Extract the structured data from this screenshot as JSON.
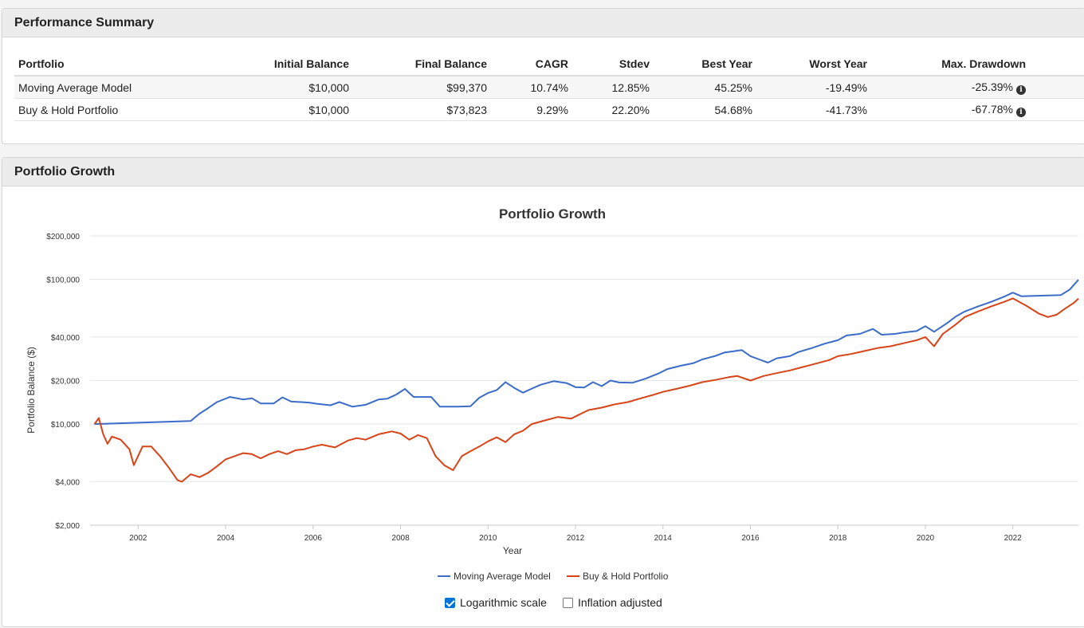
{
  "summary": {
    "title": "Performance Summary",
    "columns": [
      "Portfolio",
      "Initial Balance",
      "Final Balance",
      "CAGR",
      "Stdev",
      "Best Year",
      "Worst Year",
      "Max. Drawdown"
    ],
    "rows": [
      {
        "portfolio": "Moving Average Model",
        "initial": "$10,000",
        "final": "$99,370",
        "cagr": "10.74%",
        "stdev": "12.85%",
        "best": "45.25%",
        "worst": "-19.49%",
        "drawdown": "-25.39%"
      },
      {
        "portfolio": "Buy & Hold Portfolio",
        "initial": "$10,000",
        "final": "$73,823",
        "cagr": "9.29%",
        "stdev": "22.20%",
        "best": "54.68%",
        "worst": "-41.73%",
        "drawdown": "-67.78%"
      }
    ],
    "info_glyph": "i"
  },
  "growth": {
    "heading": "Portfolio Growth",
    "log_scale_label": "Logarithmic scale",
    "log_scale_checked": true,
    "inflation_label": "Inflation adjusted",
    "inflation_checked": false
  },
  "chart_data": {
    "type": "line",
    "title": "Portfolio Growth",
    "xlabel": "Year",
    "ylabel": "Portfolio Balance ($)",
    "yscale": "log",
    "ylim": [
      2000,
      200000
    ],
    "xlim": [
      2000.9,
      2023.5
    ],
    "y_ticks": [
      2000,
      4000,
      10000,
      20000,
      40000,
      100000,
      200000
    ],
    "y_tick_labels": [
      "$2,000",
      "$4,000",
      "$10,000",
      "$20,000",
      "$40,000",
      "$100,000",
      "$200,000"
    ],
    "x_ticks": [
      2002,
      2004,
      2006,
      2008,
      2010,
      2012,
      2014,
      2016,
      2018,
      2020,
      2022
    ],
    "x_tick_labels": [
      "2002",
      "2004",
      "2006",
      "2008",
      "2010",
      "2012",
      "2014",
      "2016",
      "2018",
      "2020",
      "2022"
    ],
    "legend_position": "bottom-center",
    "series": [
      {
        "name": "Moving Average Model",
        "color": "#3a6cc8",
        "points": [
          [
            2001.0,
            10000
          ],
          [
            2003.2,
            10500
          ],
          [
            2003.4,
            11800
          ],
          [
            2003.6,
            12900
          ],
          [
            2003.8,
            14200
          ],
          [
            2004.1,
            15400
          ],
          [
            2004.4,
            14800
          ],
          [
            2004.6,
            15100
          ],
          [
            2004.8,
            13900
          ],
          [
            2005.1,
            13900
          ],
          [
            2005.3,
            15300
          ],
          [
            2005.5,
            14300
          ],
          [
            2005.9,
            14100
          ],
          [
            2006.1,
            13800
          ],
          [
            2006.4,
            13500
          ],
          [
            2006.6,
            14200
          ],
          [
            2006.9,
            13200
          ],
          [
            2007.2,
            13600
          ],
          [
            2007.5,
            14800
          ],
          [
            2007.7,
            15000
          ],
          [
            2007.9,
            16000
          ],
          [
            2008.1,
            17500
          ],
          [
            2008.3,
            15400
          ],
          [
            2008.7,
            15400
          ],
          [
            2008.9,
            13200
          ],
          [
            2009.3,
            13200
          ],
          [
            2009.6,
            13300
          ],
          [
            2009.8,
            15200
          ],
          [
            2010.0,
            16400
          ],
          [
            2010.2,
            17200
          ],
          [
            2010.4,
            19500
          ],
          [
            2010.6,
            17800
          ],
          [
            2010.8,
            16500
          ],
          [
            2011.0,
            17600
          ],
          [
            2011.2,
            18700
          ],
          [
            2011.5,
            19800
          ],
          [
            2011.8,
            19200
          ],
          [
            2012.0,
            18000
          ],
          [
            2012.2,
            17900
          ],
          [
            2012.4,
            19500
          ],
          [
            2012.6,
            18300
          ],
          [
            2012.8,
            20000
          ],
          [
            2013.0,
            19400
          ],
          [
            2013.3,
            19300
          ],
          [
            2013.6,
            20600
          ],
          [
            2013.9,
            22400
          ],
          [
            2014.1,
            24000
          ],
          [
            2014.4,
            25300
          ],
          [
            2014.7,
            26400
          ],
          [
            2014.9,
            28000
          ],
          [
            2015.2,
            29600
          ],
          [
            2015.4,
            31200
          ],
          [
            2015.6,
            31800
          ],
          [
            2015.8,
            32500
          ],
          [
            2016.0,
            29500
          ],
          [
            2016.2,
            28000
          ],
          [
            2016.4,
            26600
          ],
          [
            2016.6,
            28500
          ],
          [
            2016.9,
            29500
          ],
          [
            2017.1,
            31500
          ],
          [
            2017.4,
            33500
          ],
          [
            2017.7,
            36000
          ],
          [
            2018.0,
            38000
          ],
          [
            2018.2,
            41000
          ],
          [
            2018.5,
            42000
          ],
          [
            2018.8,
            45500
          ],
          [
            2019.0,
            41500
          ],
          [
            2019.3,
            42000
          ],
          [
            2019.5,
            43000
          ],
          [
            2019.8,
            44000
          ],
          [
            2020.0,
            47500
          ],
          [
            2020.2,
            43500
          ],
          [
            2020.5,
            50000
          ],
          [
            2020.7,
            55500
          ],
          [
            2020.9,
            60000
          ],
          [
            2021.2,
            65000
          ],
          [
            2021.5,
            70000
          ],
          [
            2021.8,
            76000
          ],
          [
            2022.0,
            81000
          ],
          [
            2022.2,
            76500
          ],
          [
            2023.1,
            78000
          ],
          [
            2023.3,
            85000
          ],
          [
            2023.5,
            99370
          ]
        ]
      },
      {
        "name": "Buy & Hold Portfolio",
        "color": "#d64418",
        "points": [
          [
            2001.0,
            10000
          ],
          [
            2001.1,
            11000
          ],
          [
            2001.2,
            8500
          ],
          [
            2001.3,
            7300
          ],
          [
            2001.4,
            8200
          ],
          [
            2001.6,
            7800
          ],
          [
            2001.8,
            6700
          ],
          [
            2001.9,
            5200
          ],
          [
            2002.1,
            7000
          ],
          [
            2002.3,
            7000
          ],
          [
            2002.5,
            6000
          ],
          [
            2002.7,
            5000
          ],
          [
            2002.9,
            4100
          ],
          [
            2003.0,
            4000
          ],
          [
            2003.2,
            4500
          ],
          [
            2003.4,
            4300
          ],
          [
            2003.6,
            4600
          ],
          [
            2003.8,
            5100
          ],
          [
            2004.0,
            5700
          ],
          [
            2004.2,
            6000
          ],
          [
            2004.4,
            6300
          ],
          [
            2004.6,
            6200
          ],
          [
            2004.8,
            5800
          ],
          [
            2005.0,
            6200
          ],
          [
            2005.2,
            6500
          ],
          [
            2005.4,
            6200
          ],
          [
            2005.6,
            6600
          ],
          [
            2005.8,
            6700
          ],
          [
            2006.0,
            7000
          ],
          [
            2006.2,
            7200
          ],
          [
            2006.5,
            6900
          ],
          [
            2006.8,
            7700
          ],
          [
            2007.0,
            8000
          ],
          [
            2007.2,
            7800
          ],
          [
            2007.5,
            8500
          ],
          [
            2007.8,
            8900
          ],
          [
            2008.0,
            8600
          ],
          [
            2008.2,
            7800
          ],
          [
            2008.4,
            8400
          ],
          [
            2008.6,
            8000
          ],
          [
            2008.8,
            6000
          ],
          [
            2009.0,
            5200
          ],
          [
            2009.2,
            4800
          ],
          [
            2009.4,
            6000
          ],
          [
            2009.6,
            6500
          ],
          [
            2009.8,
            7000
          ],
          [
            2010.0,
            7600
          ],
          [
            2010.2,
            8100
          ],
          [
            2010.4,
            7500
          ],
          [
            2010.6,
            8500
          ],
          [
            2010.8,
            9000
          ],
          [
            2011.0,
            10000
          ],
          [
            2011.3,
            10600
          ],
          [
            2011.6,
            11200
          ],
          [
            2011.9,
            10900
          ],
          [
            2012.1,
            11700
          ],
          [
            2012.3,
            12500
          ],
          [
            2012.6,
            13000
          ],
          [
            2012.9,
            13700
          ],
          [
            2013.2,
            14200
          ],
          [
            2013.5,
            15100
          ],
          [
            2013.8,
            16000
          ],
          [
            2014.0,
            16700
          ],
          [
            2014.3,
            17500
          ],
          [
            2014.6,
            18400
          ],
          [
            2014.9,
            19500
          ],
          [
            2015.2,
            20200
          ],
          [
            2015.5,
            21100
          ],
          [
            2015.7,
            21500
          ],
          [
            2016.0,
            20000
          ],
          [
            2016.3,
            21500
          ],
          [
            2016.6,
            22500
          ],
          [
            2016.9,
            23500
          ],
          [
            2017.2,
            24800
          ],
          [
            2017.5,
            26200
          ],
          [
            2017.8,
            27700
          ],
          [
            2018.0,
            29500
          ],
          [
            2018.3,
            30500
          ],
          [
            2018.6,
            32000
          ],
          [
            2018.9,
            33500
          ],
          [
            2019.2,
            34500
          ],
          [
            2019.5,
            36200
          ],
          [
            2019.8,
            38000
          ],
          [
            2020.0,
            40000
          ],
          [
            2020.2,
            34500
          ],
          [
            2020.4,
            42000
          ],
          [
            2020.7,
            49000
          ],
          [
            2020.9,
            55000
          ],
          [
            2021.2,
            60000
          ],
          [
            2021.5,
            65000
          ],
          [
            2021.8,
            70000
          ],
          [
            2022.0,
            74000
          ],
          [
            2022.3,
            66000
          ],
          [
            2022.6,
            58000
          ],
          [
            2022.8,
            55000
          ],
          [
            2023.0,
            57000
          ],
          [
            2023.2,
            63000
          ],
          [
            2023.4,
            69000
          ],
          [
            2023.5,
            73823
          ]
        ]
      }
    ]
  }
}
